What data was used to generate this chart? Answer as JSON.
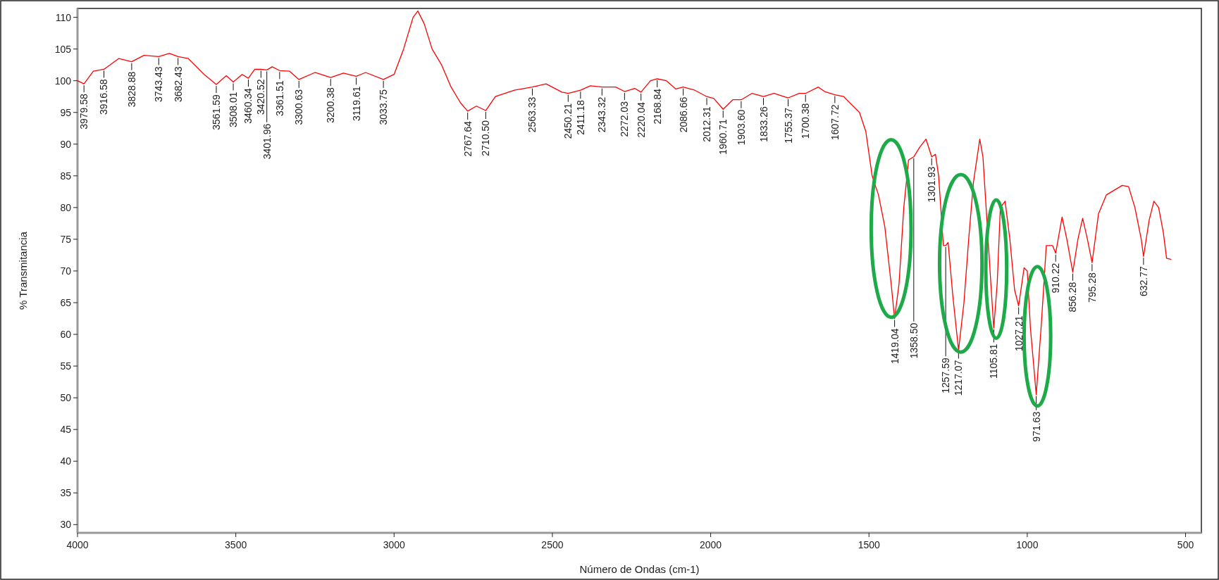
{
  "chart_data": {
    "type": "line",
    "xlabel": "Número de Ondas (cm-1)",
    "ylabel": "% Transmitancia",
    "xlim": [
      4000,
      450
    ],
    "ylim": [
      28.7,
      111.4
    ],
    "xticks": [
      4000,
      3500,
      3000,
      2500,
      2000,
      1500,
      1000,
      500
    ],
    "yticks": [
      30,
      35,
      40,
      45,
      50,
      55,
      60,
      65,
      70,
      75,
      80,
      85,
      90,
      95,
      100,
      105,
      110
    ],
    "grid": false,
    "marker": "none",
    "line_style": "solid",
    "series": [
      {
        "color": "#ff0000",
        "x": [
          4000,
          3979.58,
          3950,
          3916.58,
          3870,
          3828.88,
          3790,
          3743.43,
          3710,
          3682.43,
          3650,
          3600,
          3561.59,
          3530,
          3508.01,
          3480,
          3460.34,
          3440,
          3420.52,
          3401.96,
          3385,
          3361.51,
          3330,
          3300.63,
          3250,
          3200.38,
          3160,
          3119.61,
          3090,
          3033.75,
          3000,
          2970,
          2940,
          2925,
          2905,
          2880,
          2850,
          2820,
          2790,
          2767.64,
          2740,
          2710.5,
          2680,
          2620,
          2563.33,
          2520,
          2470,
          2450.21,
          2411.18,
          2380,
          2343.32,
          2300,
          2272.03,
          2240,
          2220.04,
          2190,
          2168.84,
          2140,
          2110,
          2086.66,
          2050,
          2012.31,
          1990,
          1960.71,
          1930,
          1903.6,
          1870,
          1833.26,
          1800,
          1755.37,
          1720,
          1700.38,
          1660,
          1640,
          1607.72,
          1580,
          1550,
          1530,
          1510,
          1490,
          1470,
          1450,
          1430,
          1419.04,
          1405,
          1390,
          1375,
          1358.5,
          1340,
          1320,
          1301.93,
          1290,
          1280,
          1265,
          1257.59,
          1250,
          1235,
          1217.07,
          1200,
          1185,
          1170,
          1150,
          1140,
          1130,
          1115,
          1105.81,
          1095,
          1085,
          1070,
          1055,
          1040,
          1027.21,
          1010,
          1000,
          990,
          971.63,
          955,
          940,
          920,
          910.22,
          890,
          875,
          856.28,
          840,
          825,
          810,
          795.28,
          775,
          750,
          700,
          680,
          660,
          640,
          632.77,
          615,
          600,
          585,
          570,
          560,
          545
        ],
        "values": [
          100,
          99.5,
          101.5,
          101.8,
          103.5,
          103,
          104,
          103.8,
          104.3,
          103.8,
          103.5,
          101,
          99.4,
          100.8,
          99.8,
          101,
          100.4,
          101.8,
          101.8,
          101.7,
          102.2,
          101.6,
          101.5,
          100.2,
          101.3,
          100.5,
          101.2,
          100.7,
          101.3,
          100.2,
          101,
          105,
          110,
          111,
          109,
          105,
          102.5,
          99,
          96.5,
          95.2,
          96,
          95.3,
          97.5,
          98.5,
          99,
          99.5,
          98.2,
          98,
          98.5,
          99.2,
          99,
          99,
          98.3,
          98.8,
          98.2,
          100,
          100.3,
          100,
          98.7,
          99,
          98.5,
          97.5,
          97.2,
          95.5,
          97,
          97,
          98,
          97.5,
          98,
          97.3,
          98,
          98,
          99,
          98.3,
          97.8,
          97.5,
          96,
          95,
          92,
          85,
          82,
          77,
          68,
          62.5,
          68,
          80,
          87.5,
          88,
          89.5,
          90.8,
          88,
          88.4,
          85,
          74,
          74,
          74.5,
          66,
          57.5,
          65,
          75,
          84,
          90.8,
          88,
          80,
          68,
          61,
          68,
          80,
          81,
          75,
          67,
          64.5,
          70.5,
          70,
          61,
          50.5,
          62,
          74,
          74,
          72.8,
          78.5,
          75,
          69.8,
          75,
          78.3,
          75,
          71.3,
          79,
          82,
          83.5,
          83.3,
          80,
          75,
          72.3,
          78,
          81,
          80,
          76,
          72,
          71.8
        ]
      }
    ],
    "annotations": [
      {
        "text": "3979.58",
        "x": 3979.58,
        "y": 99.5
      },
      {
        "text": "3916.58",
        "x": 3916.58,
        "y": 101.8
      },
      {
        "text": "3828.88",
        "x": 3828.88,
        "y": 103
      },
      {
        "text": "3743.43",
        "x": 3743.43,
        "y": 103.8
      },
      {
        "text": "3682.43",
        "x": 3682.43,
        "y": 103.8
      },
      {
        "text": "3561.59",
        "x": 3561.59,
        "y": 99.4
      },
      {
        "text": "3508.01",
        "x": 3508.01,
        "y": 99.8
      },
      {
        "text": "3460.34",
        "x": 3460.34,
        "y": 100.4
      },
      {
        "text": "3420.52",
        "x": 3420.52,
        "y": 101.8
      },
      {
        "text": "3401.96",
        "x": 3401.96,
        "y": 101.7
      },
      {
        "text": "3361.51",
        "x": 3361.51,
        "y": 101.6
      },
      {
        "text": "3300.63",
        "x": 3300.63,
        "y": 100.2
      },
      {
        "text": "3200.38",
        "x": 3200.38,
        "y": 100.5
      },
      {
        "text": "3119.61",
        "x": 3119.61,
        "y": 100.7
      },
      {
        "text": "3033.75",
        "x": 3033.75,
        "y": 100.2
      },
      {
        "text": "2767.64",
        "x": 2767.64,
        "y": 95.2
      },
      {
        "text": "2710.50",
        "x": 2710.5,
        "y": 95.3
      },
      {
        "text": "2563.33",
        "x": 2563.33,
        "y": 99
      },
      {
        "text": "2450.21",
        "x": 2450.21,
        "y": 98
      },
      {
        "text": "2411.18",
        "x": 2411.18,
        "y": 98.5
      },
      {
        "text": "2343.32",
        "x": 2343.32,
        "y": 99
      },
      {
        "text": "2272.03",
        "x": 2272.03,
        "y": 98.3
      },
      {
        "text": "2220.04",
        "x": 2220.04,
        "y": 98.2
      },
      {
        "text": "2168.84",
        "x": 2168.84,
        "y": 100.3
      },
      {
        "text": "2086.66",
        "x": 2086.66,
        "y": 99
      },
      {
        "text": "2012.31",
        "x": 2012.31,
        "y": 97.5
      },
      {
        "text": "1960.71",
        "x": 1960.71,
        "y": 95.5
      },
      {
        "text": "1903.60",
        "x": 1903.6,
        "y": 97
      },
      {
        "text": "1833.26",
        "x": 1833.26,
        "y": 97.5
      },
      {
        "text": "1755.37",
        "x": 1755.37,
        "y": 97.3
      },
      {
        "text": "1700.38",
        "x": 1700.38,
        "y": 98
      },
      {
        "text": "1607.72",
        "x": 1607.72,
        "y": 97.8
      },
      {
        "text": "1419.04",
        "x": 1419.04,
        "y": 62.5
      },
      {
        "text": "1358.50",
        "x": 1358.5,
        "y": 88
      },
      {
        "text": "1301.93",
        "x": 1301.93,
        "y": 88
      },
      {
        "text": "1257.59",
        "x": 1257.59,
        "y": 74
      },
      {
        "text": "1217.07",
        "x": 1217.07,
        "y": 57.5
      },
      {
        "text": "1105.81",
        "x": 1105.81,
        "y": 61
      },
      {
        "text": "1027.21",
        "x": 1027.21,
        "y": 64.5
      },
      {
        "text": "971.63",
        "x": 971.63,
        "y": 50.5
      },
      {
        "text": "910.22",
        "x": 910.22,
        "y": 72.8
      },
      {
        "text": "856.28",
        "x": 856.28,
        "y": 69.8
      },
      {
        "text": "795.28",
        "x": 795.28,
        "y": 71.3
      },
      {
        "text": "632.77",
        "x": 632.77,
        "y": 72.3
      }
    ]
  }
}
